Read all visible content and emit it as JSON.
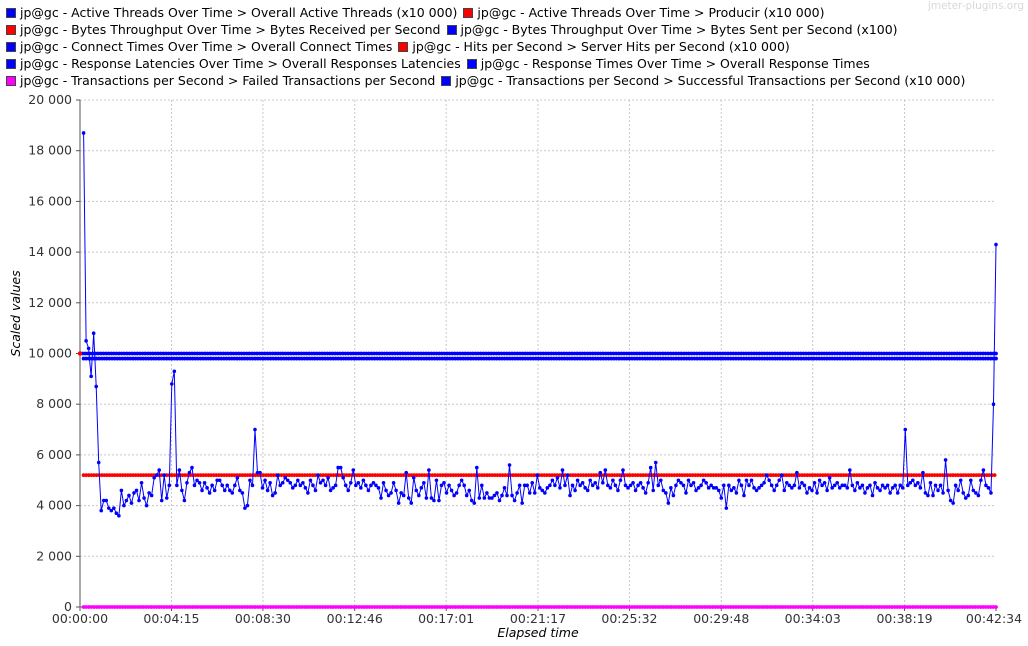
{
  "watermark": "jmeter-plugins.org",
  "chart_data": {
    "type": "line",
    "xlabel": "Elapsed time",
    "ylabel": "Scaled values",
    "ylim": [
      0,
      20000
    ],
    "xlim": [
      "00:00:00",
      "00:42:34"
    ],
    "y_ticks": [
      "0",
      "2 000",
      "4 000",
      "6 000",
      "8 000",
      "10 000",
      "12 000",
      "14 000",
      "16 000",
      "18 000",
      "20 000"
    ],
    "x_ticks": [
      "00:00:00",
      "00:04:15",
      "00:08:30",
      "00:12:46",
      "00:17:01",
      "00:21:17",
      "00:25:32",
      "00:29:48",
      "00:34:03",
      "00:38:19",
      "00:42:34"
    ],
    "grid": true,
    "legend_position": "top",
    "legend": [
      {
        "label": "jp@gc - Active Threads Over Time > Overall Active Threads (x10 000)",
        "color": "#0000ff"
      },
      {
        "label": "jp@gc - Active Threads Over Time > Producir (x10 000)",
        "color": "#ff0000"
      },
      {
        "label": "jp@gc - Bytes Throughput Over Time > Bytes Received per Second",
        "color": "#ff0000"
      },
      {
        "label": "jp@gc - Bytes Throughput Over Time > Bytes Sent per Second (x100)",
        "color": "#0000ff"
      },
      {
        "label": "jp@gc - Connect Times Over Time > Overall Connect Times",
        "color": "#0000ff"
      },
      {
        "label": "jp@gc - Hits per Second > Server Hits per Second (x10 000)",
        "color": "#ff0000"
      },
      {
        "label": "jp@gc - Response Latencies Over Time > Overall Responses Latencies",
        "color": "#0000ff"
      },
      {
        "label": "jp@gc - Response Times Over Time > Overall Response Times",
        "color": "#0000ff"
      },
      {
        "label": "jp@gc - Transactions per Second > Failed Transactions per Second",
        "color": "#ff00ff"
      },
      {
        "label": "jp@gc - Transactions per Second > Successful Transactions per Second (x10 000)",
        "color": "#0000ff"
      }
    ],
    "legend_rows": [
      [
        0,
        1
      ],
      [
        2,
        3
      ],
      [
        4,
        5
      ],
      [
        6,
        7
      ],
      [
        8,
        9
      ]
    ],
    "series": [
      {
        "style": "flat",
        "color": "#0000ff",
        "x_start": "00:00:00",
        "x_end": "00:42:34",
        "value": 10000
      },
      {
        "style": "flat",
        "color": "#ff0000",
        "x_start": "00:00:00",
        "x_end": "00:00:00",
        "value": 10000
      },
      {
        "style": "flat",
        "color": "#0000ff",
        "x_start": "00:00:10",
        "x_end": "00:42:34",
        "value": 9800
      },
      {
        "style": "flat",
        "color": "#ff0000",
        "x_start": "00:00:10",
        "x_end": "00:42:30",
        "value": 5200
      },
      {
        "style": "flat",
        "color": "#ff00ff",
        "x_start": "00:00:10",
        "x_end": "00:42:34",
        "value": 0
      },
      {
        "style": "noisy",
        "color": "#0000ff",
        "x_start": "00:00:10",
        "x_end": "00:42:34",
        "values": [
          18700,
          10500,
          10200,
          9100,
          10800,
          8700,
          5700,
          3800,
          4200,
          4200,
          3900,
          3800,
          3900,
          3700,
          3600,
          4600,
          4000,
          4200,
          4400,
          4100,
          4500,
          4600,
          4200,
          4900,
          4300,
          4000,
          4500,
          4400,
          5100,
          5200,
          5400,
          4200,
          5200,
          4300,
          4800,
          8800,
          9300,
          4800,
          5400,
          4600,
          4200,
          4900,
          5300,
          5500,
          4800,
          5000,
          4900,
          4600,
          4900,
          4700,
          4500,
          4800,
          4600,
          5000,
          5000,
          4800,
          4600,
          4800,
          4600,
          4500,
          4800,
          5100,
          4600,
          4500,
          3900,
          4000,
          5000,
          4800,
          7000,
          5300,
          5300,
          4700,
          5000,
          4600,
          4900,
          4400,
          4500,
          5200,
          4800,
          4900,
          5100,
          5000,
          4900,
          4700,
          4800,
          5000,
          4800,
          4900,
          4700,
          4500,
          5000,
          4800,
          4600,
          5200,
          4900,
          5000,
          4800,
          5100,
          4600,
          4700,
          4800,
          5500,
          5500,
          5100,
          4800,
          4600,
          4900,
          5400,
          4800,
          4900,
          4700,
          5000,
          4800,
          4600,
          4800,
          4900,
          4800,
          4700,
          4300,
          4900,
          4600,
          4400,
          4500,
          4900,
          4600,
          4100,
          4500,
          4400,
          5300,
          4300,
          4100,
          5100,
          4600,
          4400,
          4700,
          4900,
          4300,
          5400,
          4300,
          4200,
          5000,
          4200,
          4800,
          4900,
          4500,
          4800,
          4600,
          4400,
          4500,
          4800,
          5000,
          4800,
          4400,
          4600,
          4200,
          4100,
          5500,
          4300,
          4800,
          4300,
          4500,
          4300,
          4300,
          4400,
          4500,
          4200,
          4400,
          4700,
          4400,
          5600,
          4400,
          4200,
          4500,
          4800,
          4100,
          4800,
          4800,
          4500,
          4900,
          4500,
          5200,
          4700,
          4600,
          4500,
          4700,
          4800,
          5000,
          4800,
          5100,
          4700,
          5400,
          4800,
          5200,
          4400,
          4800,
          4600,
          5000,
          4800,
          4900,
          4700,
          4600,
          5000,
          4800,
          4900,
          4700,
          5300,
          4900,
          5400,
          4800,
          4700,
          5000,
          4800,
          4600,
          5000,
          5400,
          4800,
          4700,
          4800,
          4900,
          4600,
          4800,
          4900,
          4700,
          4500,
          4900,
          5500,
          4600,
          5700,
          4800,
          5000,
          4600,
          4500,
          4100,
          4700,
          4400,
          4800,
          5000,
          4900,
          4800,
          4500,
          5000,
          4800,
          4900,
          4600,
          4700,
          4800,
          5000,
          4900,
          4700,
          4800,
          4700,
          4700,
          4600,
          4300,
          4800,
          3900,
          4800,
          4600,
          4700,
          4500,
          5000,
          4800,
          4400,
          5000,
          4800,
          5000,
          4700,
          4600,
          4700,
          4800,
          4900,
          5200,
          5000,
          4800,
          4600,
          4800,
          5000,
          5200,
          4600,
          4900,
          4800,
          4700,
          4800,
          5300,
          4700,
          4900,
          4800,
          4500,
          4700,
          4600,
          4900,
          4500,
          5000,
          4800,
          4900,
          4600,
          5100,
          4700,
          4800,
          4900,
          4700,
          4800,
          4800,
          4700,
          5400,
          4800,
          4600,
          4900,
          4700,
          4800,
          4500,
          4700,
          4800,
          4400,
          4900,
          4700,
          4600,
          4800,
          4700,
          4800,
          4500,
          4700,
          4800,
          4500,
          4800,
          4700,
          7000,
          4800,
          4900,
          5000,
          4800,
          4900,
          4700,
          5300,
          4500,
          4400,
          4900,
          4400,
          4800,
          4600,
          4800,
          4500,
          5800,
          4600,
          4200,
          4100,
          4800,
          4600,
          5000,
          4500,
          4300,
          4400,
          5000,
          4600,
          4500,
          4400,
          5000,
          5400,
          4800,
          4700,
          4500,
          8000,
          14300
        ]
      }
    ]
  }
}
